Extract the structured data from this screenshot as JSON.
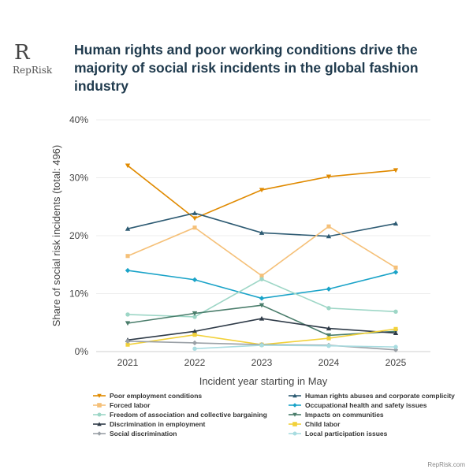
{
  "brand": {
    "logo_mark": "R",
    "logo_text": "RepRisk",
    "footer": "RepRisk.com"
  },
  "chart_data": {
    "type": "line",
    "title": "Human rights and poor working conditions drive the majority of social risk incidents in the global fashion industry",
    "xlabel": "Incident year starting in May",
    "ylabel": "Share of social risk incidents (total: 496)",
    "x": [
      "2021",
      "2022",
      "2023",
      "2024",
      "2025"
    ],
    "ylim": [
      0,
      40
    ],
    "yticks": [
      0,
      10,
      20,
      30,
      40
    ],
    "ytick_labels": [
      "0%",
      "10%",
      "20%",
      "30%",
      "40%"
    ],
    "grid": true,
    "legend_position": "bottom",
    "series": [
      {
        "name": "Poor employment conditions",
        "color": "#e08a00",
        "marker": "triangle-down",
        "values": [
          32.1,
          23.0,
          27.9,
          30.2,
          31.3
        ]
      },
      {
        "name": "Human rights abuses and corporate complicity",
        "color": "#2e5b73",
        "marker": "triangle-up",
        "values": [
          21.2,
          23.9,
          20.5,
          19.9,
          22.1
        ]
      },
      {
        "name": "Forced labor",
        "color": "#f5c078",
        "marker": "square",
        "values": [
          16.5,
          21.4,
          13.1,
          21.6,
          14.5
        ]
      },
      {
        "name": "Occupational health and safety issues",
        "color": "#1aa3c8",
        "marker": "diamond",
        "values": [
          14.0,
          12.4,
          9.2,
          10.8,
          13.7
        ]
      },
      {
        "name": "Freedom of association and collective bargaining",
        "color": "#9dd6c6",
        "marker": "circle",
        "values": [
          6.4,
          6.0,
          12.5,
          7.5,
          6.9
        ]
      },
      {
        "name": "Impacts on communities",
        "color": "#4a7d6b",
        "marker": "triangle-down",
        "values": [
          4.9,
          6.6,
          8.0,
          2.8,
          3.5
        ]
      },
      {
        "name": "Discrimination in employment",
        "color": "#2f3b48",
        "marker": "triangle-up",
        "values": [
          2.0,
          3.5,
          5.7,
          4.0,
          3.2
        ]
      },
      {
        "name": "Child labor",
        "color": "#f2d13a",
        "marker": "square",
        "values": [
          1.2,
          2.9,
          1.2,
          2.3,
          3.9
        ]
      },
      {
        "name": "Social discrimination",
        "color": "#9aa0a6",
        "marker": "diamond",
        "values": [
          1.8,
          1.5,
          1.2,
          1.1,
          0.3
        ]
      },
      {
        "name": "Local participation issues",
        "color": "#a8dce0",
        "marker": "circle",
        "values": [
          null,
          0.5,
          1.1,
          1.0,
          0.8
        ]
      }
    ]
  }
}
